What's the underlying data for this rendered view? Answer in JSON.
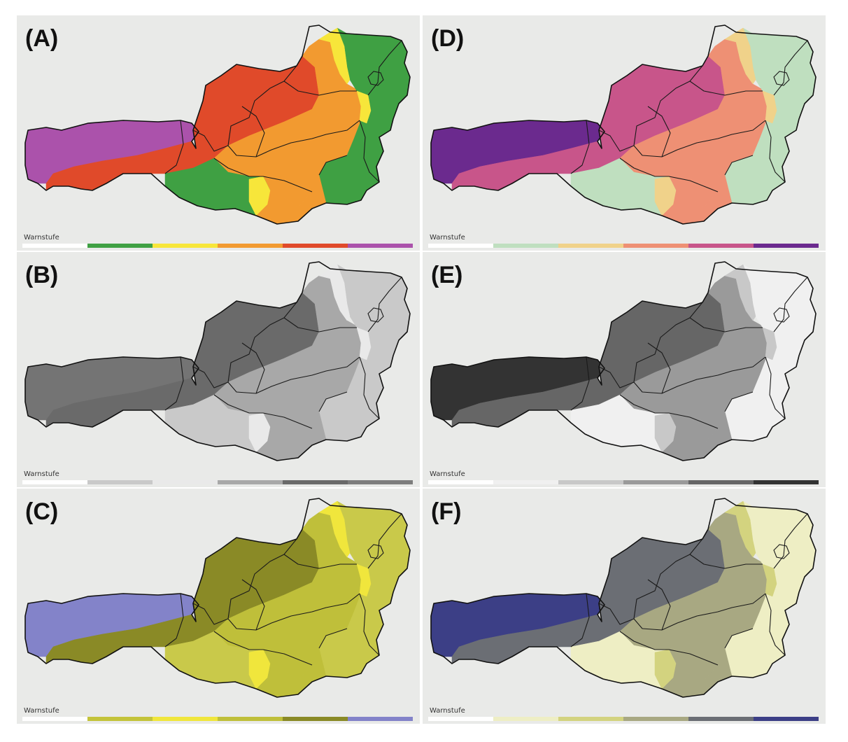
{
  "legend_title": "Warnstufe",
  "panels": [
    {
      "label": "(A)",
      "colors": [
        "#ffffff",
        "#3fa043",
        "#f7e63a",
        "#f29a30",
        "#e04a2a",
        "#ab52ab"
      ],
      "regions": {
        "west": "#ab52ab",
        "alps": "#e04a2a",
        "north": "#e04a2a",
        "mid": "#f29a30",
        "yellowBand": "#f7e63a",
        "east": "#3fa043",
        "south": "#3fa043",
        "southMid": "#f29a30"
      }
    },
    {
      "label": "(B)",
      "colors": [
        "#ffffff",
        "#c9c9c9",
        "#e9e9e9",
        "#a8a8a8",
        "#6a6a6a",
        "#7d7d7d"
      ],
      "regions": {
        "west": "#747474",
        "alps": "#6a6a6a",
        "north": "#6a6a6a",
        "mid": "#a8a8a8",
        "yellowBand": "#e9e9e9",
        "east": "#c9c9c9",
        "south": "#c9c9c9",
        "southMid": "#a8a8a8"
      }
    },
    {
      "label": "(C)",
      "colors": [
        "#ffffff",
        "#c3c33a",
        "#f0e63c",
        "#bfbf3a",
        "#8a8a26",
        "#8383c9"
      ],
      "regions": {
        "west": "#8383c9",
        "alps": "#8a8a26",
        "north": "#8a8a26",
        "mid": "#bfbf3a",
        "yellowBand": "#f0e63c",
        "east": "#c9c94a",
        "south": "#c9c94a",
        "southMid": "#bfbf3a"
      }
    },
    {
      "label": "(D)",
      "colors": [
        "#ffffff",
        "#bfdfbf",
        "#f0d28a",
        "#ee9074",
        "#c8558a",
        "#6b2a8e"
      ],
      "regions": {
        "west": "#6b2a8e",
        "alps": "#c8558a",
        "north": "#c8558a",
        "mid": "#ee9074",
        "yellowBand": "#f0d28a",
        "east": "#bfdfbf",
        "south": "#bfdfbf",
        "southMid": "#ee9074"
      }
    },
    {
      "label": "(E)",
      "colors": [
        "#ffffff",
        "#f0f0f0",
        "#c8c8c8",
        "#9a9a9a",
        "#666666",
        "#333333"
      ],
      "regions": {
        "west": "#333333",
        "alps": "#666666",
        "north": "#666666",
        "mid": "#9a9a9a",
        "yellowBand": "#c8c8c8",
        "east": "#f0f0f0",
        "south": "#f0f0f0",
        "southMid": "#9a9a9a"
      }
    },
    {
      "label": "(F)",
      "colors": [
        "#ffffff",
        "#eeeec4",
        "#d3d37f",
        "#a8a882",
        "#6b6e74",
        "#3c3f86"
      ],
      "regions": {
        "west": "#3c3f86",
        "alps": "#6b6e74",
        "north": "#6b6e74",
        "mid": "#a8a882",
        "yellowBand": "#d3d37f",
        "east": "#eeeec4",
        "south": "#eeeec4",
        "southMid": "#a8a882"
      }
    }
  ]
}
